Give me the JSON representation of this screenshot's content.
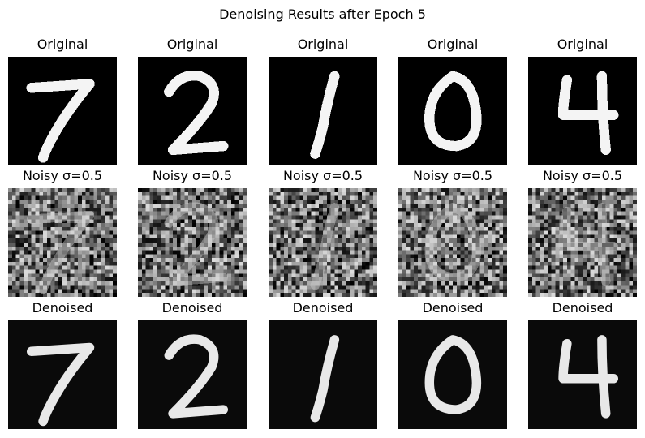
{
  "figure": {
    "title": "Denoising Results after Epoch 5",
    "rows": [
      {
        "label": "Original"
      },
      {
        "label": "Noisy σ=0.5"
      },
      {
        "label": "Denoised"
      }
    ],
    "digits": [
      "7",
      "2",
      "1",
      "0",
      "4"
    ],
    "colormap": "gray"
  }
}
